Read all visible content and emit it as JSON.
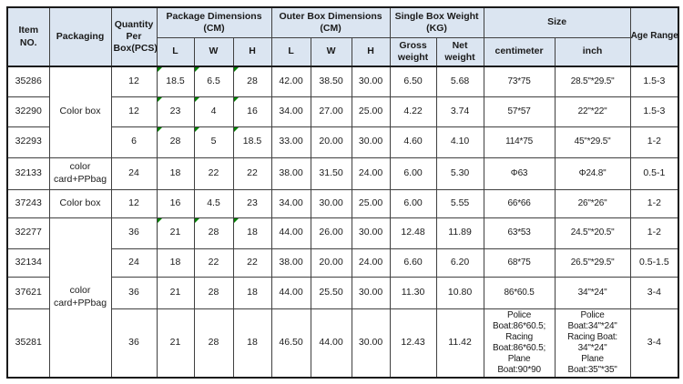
{
  "colors": {
    "header_bg": "#dbe5f1",
    "grid_line": "#404040",
    "outer_border": "#1a1a1a",
    "error_mark_green": "#008000",
    "text": "#1a1a1a"
  },
  "table": {
    "headers": {
      "item_no": "Item NO.",
      "packaging": "Packaging",
      "quantity_per_box": "Quantity Per Box(PCS)",
      "package_dims": "Package Dimensions (CM)",
      "outer_dims": "Outer Box Dimensions (CM)",
      "single_box_weight": "Single Box Weight (KG)",
      "size": "Size",
      "age_range": "Age Range",
      "dim_l": "L",
      "dim_w": "W",
      "dim_h": "H",
      "gross_weight": "Gross weight",
      "net_weight": "Net weight",
      "centimeter": "centimeter",
      "inch": "inch"
    },
    "rows": [
      {
        "item": "35286",
        "packaging": {
          "label": "Color box",
          "rowspan": 3
        },
        "qty": "12",
        "pl": "18.5",
        "pw": "6.5",
        "ph": "28",
        "marks": true,
        "ol": "42.00",
        "ow": "38.50",
        "oh": "30.00",
        "gross": "6.50",
        "net": "5.68",
        "cm": "73*75",
        "inch": "28.5\"*29.5\"",
        "age": "1.5-3"
      },
      {
        "item": "32290",
        "qty": "12",
        "pl": "23",
        "pw": "4",
        "ph": "16",
        "marks": true,
        "ol": "34.00",
        "ow": "27.00",
        "oh": "25.00",
        "gross": "4.22",
        "net": "3.74",
        "cm": "57*57",
        "inch": "22\"*22\"",
        "age": "1.5-3"
      },
      {
        "item": "32293",
        "qty": "6",
        "pl": "28",
        "pw": "5",
        "ph": "18.5",
        "marks": true,
        "ol": "33.00",
        "ow": "20.00",
        "oh": "30.00",
        "gross": "4.60",
        "net": "4.10",
        "cm": "114*75",
        "inch": "45\"*29.5\"",
        "age": "1-2"
      },
      {
        "item": "32133",
        "packaging": {
          "label": "color card+PPbag",
          "rowspan": 1
        },
        "qty": "24",
        "pl": "18",
        "pw": "22",
        "ph": "22",
        "marks": false,
        "ol": "38.00",
        "ow": "31.50",
        "oh": "24.00",
        "gross": "6.00",
        "net": "5.30",
        "cm": "Φ63",
        "inch": "Φ24.8\"",
        "age": "0.5-1"
      },
      {
        "item": "37243",
        "packaging": {
          "label": "Color box",
          "rowspan": 1
        },
        "qty": "12",
        "pl": "16",
        "pw": "4.5",
        "ph": "23",
        "marks": false,
        "ol": "34.00",
        "ow": "30.00",
        "oh": "25.00",
        "gross": "6.00",
        "net": "5.55",
        "cm": "66*66",
        "inch": "26\"*26\"",
        "age": "1-2"
      },
      {
        "item": "32277",
        "packaging": {
          "label": "color card+PPbag",
          "rowspan": 4
        },
        "qty": "36",
        "pl": "21",
        "pw": "28",
        "ph": "18",
        "marks": true,
        "ol": "44.00",
        "ow": "26.00",
        "oh": "30.00",
        "gross": "12.48",
        "net": "11.89",
        "cm": "63*53",
        "inch": "24.5\"*20.5\"",
        "age": "1-2"
      },
      {
        "item": "32134",
        "qty": "24",
        "pl": "18",
        "pw": "22",
        "ph": "22",
        "marks": false,
        "ol": "38.00",
        "ow": "20.00",
        "oh": "24.00",
        "gross": "6.60",
        "net": "6.20",
        "cm": "68*75",
        "inch": "26.5\"*29.5\"",
        "age": "0.5-1.5"
      },
      {
        "item": "37621",
        "qty": "36",
        "pl": "21",
        "pw": "28",
        "ph": "18",
        "marks": false,
        "ol": "44.00",
        "ow": "25.50",
        "oh": "30.00",
        "gross": "11.30",
        "net": "10.80",
        "cm": "86*60.5",
        "inch": "34\"*24\"",
        "age": "3-4"
      },
      {
        "item": "35281",
        "qty": "36",
        "pl": "21",
        "pw": "28",
        "ph": "18",
        "marks": false,
        "ol": "46.50",
        "ow": "44.00",
        "oh": "30.00",
        "gross": "12.43",
        "net": "11.42",
        "cm": "Police\nBoat:86*60.5;\nRacing\nBoat:86*60.5;\nPlane Boat:90*90",
        "inch": "Police Boat:34\"*24\"\nRacing Boat:\n34\"*24\"\nPlane Boat:35\"*35\"",
        "age": "3-4"
      }
    ]
  }
}
